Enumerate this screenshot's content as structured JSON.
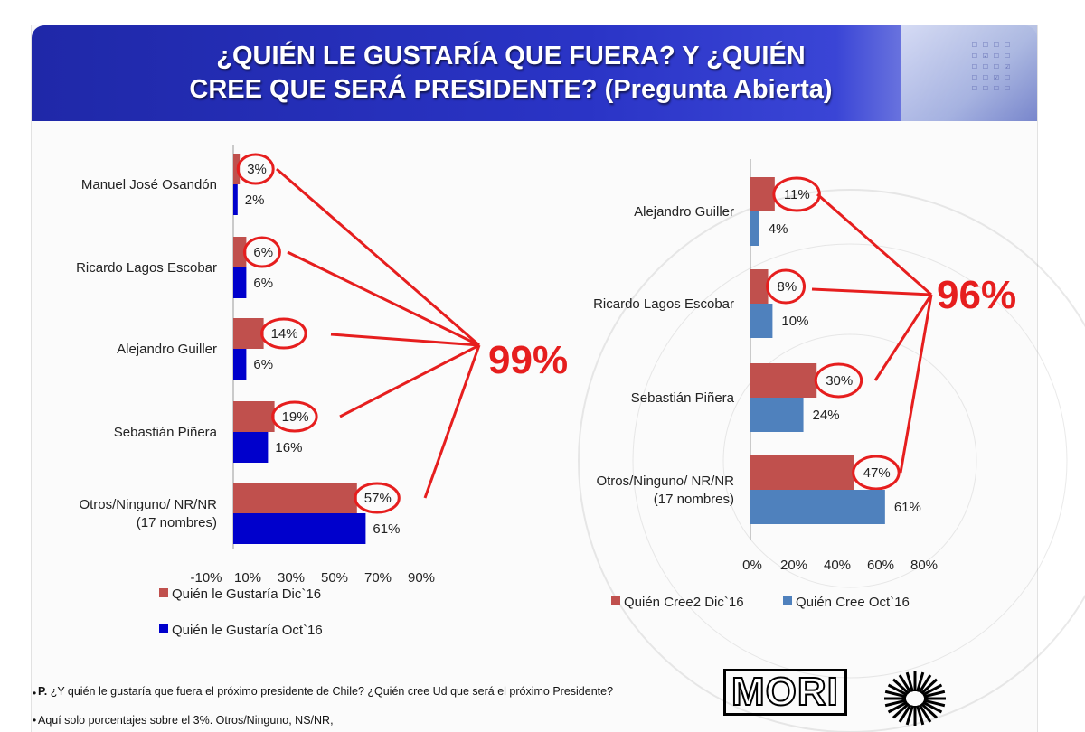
{
  "header": {
    "title_line1": "¿QUIÉN LE GUSTARÍA  QUE FUERA? Y ¿QUIÉN",
    "title_line2": "CREE QUE SERÁ PRESIDENTE? (Pregunta Abierta)"
  },
  "colors": {
    "left_dic": "#c0504d",
    "left_oct": "#0000cc",
    "right_dic": "#c0504d",
    "right_oct": "#4f81bd",
    "highlight": "#e61e1e",
    "header_blue": "#2a34c6"
  },
  "chart_data": [
    {
      "type": "bar",
      "orientation": "horizontal",
      "categories": [
        "Manuel José Osandón",
        "Ricardo Lagos Escobar",
        "Alejandro Guiller",
        "Sebastián Piñera",
        "Otros/Ninguno/ NR/NR\n(17 nombres)"
      ],
      "series": [
        {
          "name": "Quién le  Gustaría Dic`16",
          "values": [
            3,
            6,
            14,
            19,
            57
          ],
          "labels": [
            "3%",
            "6%",
            "14%",
            "19%",
            "57%"
          ]
        },
        {
          "name": "Quién le  Gustaría Oct`16",
          "values": [
            2,
            6,
            6,
            16,
            61
          ],
          "labels": [
            "2%",
            "6%",
            "6%",
            "16%",
            "61%"
          ]
        }
      ],
      "xlim": [
        -10,
        90
      ],
      "xticks": [
        "-10%",
        "10%",
        "30%",
        "50%",
        "70%",
        "90%"
      ],
      "annotation": "99%",
      "legend_position": "bottom"
    },
    {
      "type": "bar",
      "orientation": "horizontal",
      "categories": [
        "Alejandro Guiller",
        "Ricardo Lagos Escobar",
        "Sebastián Piñera",
        "Otros/Ninguno/ NR/NR\n(17 nombres)"
      ],
      "series": [
        {
          "name": "Quién Cree2 Dic`16",
          "values": [
            11,
            8,
            30,
            47
          ],
          "labels": [
            "11%",
            "8%",
            "30%",
            "47%"
          ]
        },
        {
          "name": "Quién Cree Oct`16",
          "values": [
            4,
            10,
            24,
            61
          ],
          "labels": [
            "4%",
            "10%",
            "24%",
            "61%"
          ]
        }
      ],
      "xlim": [
        0,
        80
      ],
      "xticks": [
        "0%",
        "20%",
        "40%",
        "60%",
        "80%"
      ],
      "annotation": "96%",
      "legend_position": "bottom"
    }
  ],
  "footer": {
    "bullet": "•",
    "question_label": "P.",
    "question": "¿Y quién le gustaría que fuera el próximo presidente de Chile? ¿Quién cree Ud que será el próximo Presidente?",
    "note": "Aquí solo porcentajes sobre el 3%. Otros/Ninguno, NS/NR,",
    "logo": "MORI"
  }
}
